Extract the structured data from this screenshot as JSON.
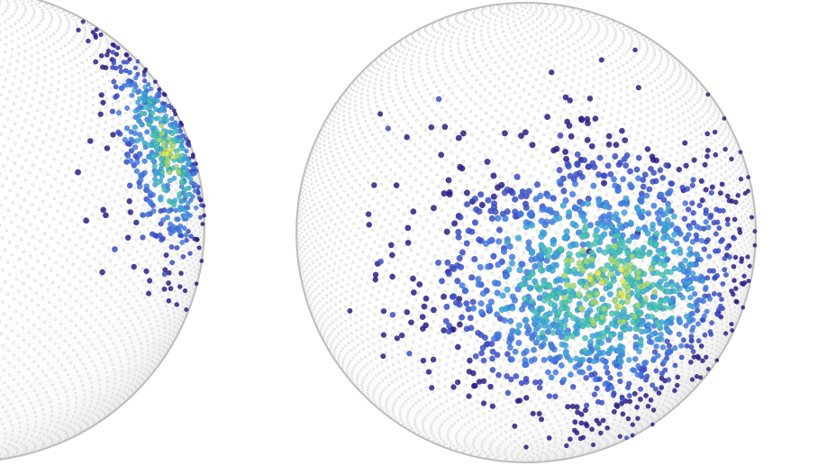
{
  "figure": {
    "panels": [
      {
        "id": "left",
        "description_hidden": true,
        "cluster": {
          "center_lat_deg": 18,
          "center_lon_deg": 63,
          "spread_lat_deg": 26,
          "spread_lon_deg": 20,
          "count": 520
        }
      },
      {
        "id": "right",
        "cluster": {
          "center_lat_deg": -14,
          "center_lon_deg": 22,
          "spread_lat_deg": 32,
          "spread_lon_deg": 42,
          "count": 1500
        }
      }
    ]
  },
  "colors": {
    "background": "#ffffff",
    "sphere_grid_dot": "#c8c8c8",
    "sphere_edge": "#b5b5b5",
    "colormap": [
      "#2a1f86",
      "#3a4ec6",
      "#3f7be0",
      "#38a6d8",
      "#45c4b0",
      "#9ed870",
      "#e3e85a"
    ]
  }
}
